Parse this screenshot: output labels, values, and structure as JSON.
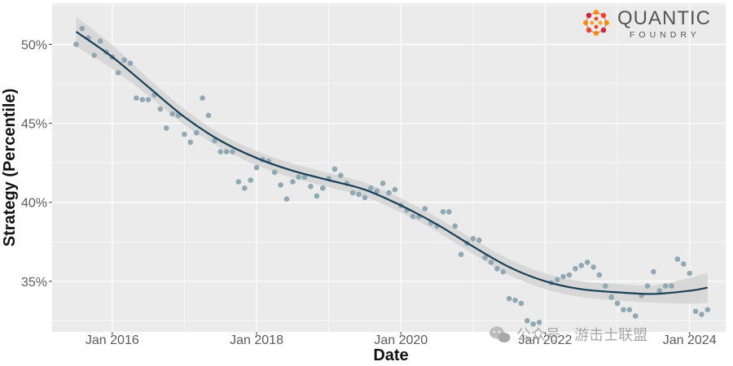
{
  "chart_data": {
    "type": "scatter",
    "title": "",
    "xlabel": "Date",
    "ylabel": "Strategy (Percentile)",
    "x_ticks": [
      "Jan 2016",
      "Jan 2018",
      "Jan 2020",
      "Jan 2022",
      "Jan 2024"
    ],
    "y_ticks": [
      "35%",
      "40%",
      "45%",
      "50%"
    ],
    "xlim": [
      "2015-03-01",
      "2024-07-01"
    ],
    "ylim": [
      31.8,
      52.6
    ],
    "grid": true,
    "colors": {
      "points": "#8fa8b4",
      "line": "#173f55",
      "band": "#d2d2d2",
      "panel": "#ebebeb",
      "grid": "#ffffff"
    },
    "points": [
      {
        "x": "2015-07",
        "y": 50.0
      },
      {
        "x": "2015-08",
        "y": 51.0
      },
      {
        "x": "2015-09",
        "y": 50.4
      },
      {
        "x": "2015-10",
        "y": 49.3
      },
      {
        "x": "2015-11",
        "y": 50.2
      },
      {
        "x": "2015-12",
        "y": 49.5
      },
      {
        "x": "2016-01",
        "y": 49.2
      },
      {
        "x": "2016-02",
        "y": 48.2
      },
      {
        "x": "2016-03",
        "y": 49.0
      },
      {
        "x": "2016-04",
        "y": 48.8
      },
      {
        "x": "2016-05",
        "y": 46.6
      },
      {
        "x": "2016-06",
        "y": 46.5
      },
      {
        "x": "2016-07",
        "y": 46.5
      },
      {
        "x": "2016-08",
        "y": 46.8
      },
      {
        "x": "2016-09",
        "y": 45.9
      },
      {
        "x": "2016-10",
        "y": 44.7
      },
      {
        "x": "2016-11",
        "y": 45.6
      },
      {
        "x": "2016-12",
        "y": 45.5
      },
      {
        "x": "2017-01",
        "y": 44.3
      },
      {
        "x": "2017-02",
        "y": 43.8
      },
      {
        "x": "2017-03",
        "y": 44.4
      },
      {
        "x": "2017-04",
        "y": 46.6
      },
      {
        "x": "2017-05",
        "y": 45.5
      },
      {
        "x": "2017-06",
        "y": 43.9
      },
      {
        "x": "2017-07",
        "y": 43.2
      },
      {
        "x": "2017-08",
        "y": 43.2
      },
      {
        "x": "2017-09",
        "y": 43.2
      },
      {
        "x": "2017-10",
        "y": 41.3
      },
      {
        "x": "2017-11",
        "y": 40.9
      },
      {
        "x": "2017-12",
        "y": 41.4
      },
      {
        "x": "2018-01",
        "y": 42.2
      },
      {
        "x": "2018-02",
        "y": 42.7
      },
      {
        "x": "2018-03",
        "y": 42.6
      },
      {
        "x": "2018-04",
        "y": 41.9
      },
      {
        "x": "2018-05",
        "y": 41.1
      },
      {
        "x": "2018-06",
        "y": 40.2
      },
      {
        "x": "2018-07",
        "y": 41.3
      },
      {
        "x": "2018-08",
        "y": 41.6
      },
      {
        "x": "2018-09",
        "y": 41.6
      },
      {
        "x": "2018-10",
        "y": 41.0
      },
      {
        "x": "2018-11",
        "y": 40.4
      },
      {
        "x": "2018-12",
        "y": 40.9
      },
      {
        "x": "2019-01",
        "y": 41.5
      },
      {
        "x": "2019-02",
        "y": 42.1
      },
      {
        "x": "2019-03",
        "y": 41.7
      },
      {
        "x": "2019-04",
        "y": 41.2
      },
      {
        "x": "2019-05",
        "y": 40.6
      },
      {
        "x": "2019-06",
        "y": 40.5
      },
      {
        "x": "2019-07",
        "y": 40.3
      },
      {
        "x": "2019-08",
        "y": 40.9
      },
      {
        "x": "2019-09",
        "y": 40.7
      },
      {
        "x": "2019-10",
        "y": 41.2
      },
      {
        "x": "2019-11",
        "y": 40.6
      },
      {
        "x": "2019-12",
        "y": 40.8
      },
      {
        "x": "2020-01",
        "y": 39.8
      },
      {
        "x": "2020-02",
        "y": 39.5
      },
      {
        "x": "2020-03",
        "y": 39.1
      },
      {
        "x": "2020-04",
        "y": 39.1
      },
      {
        "x": "2020-05",
        "y": 39.6
      },
      {
        "x": "2020-06",
        "y": 38.7
      },
      {
        "x": "2020-07",
        "y": 38.5
      },
      {
        "x": "2020-08",
        "y": 39.4
      },
      {
        "x": "2020-09",
        "y": 39.4
      },
      {
        "x": "2020-10",
        "y": 38.5
      },
      {
        "x": "2020-11",
        "y": 36.7
      },
      {
        "x": "2020-12",
        "y": 37.4
      },
      {
        "x": "2021-01",
        "y": 37.7
      },
      {
        "x": "2021-02",
        "y": 37.6
      },
      {
        "x": "2021-03",
        "y": 36.5
      },
      {
        "x": "2021-04",
        "y": 36.2
      },
      {
        "x": "2021-05",
        "y": 35.8
      },
      {
        "x": "2021-06",
        "y": 35.6
      },
      {
        "x": "2021-07",
        "y": 33.9
      },
      {
        "x": "2021-08",
        "y": 33.8
      },
      {
        "x": "2021-09",
        "y": 33.6
      },
      {
        "x": "2021-10",
        "y": 32.5
      },
      {
        "x": "2021-11",
        "y": 32.3
      },
      {
        "x": "2021-12",
        "y": 32.4
      },
      {
        "x": "2022-02",
        "y": 34.9
      },
      {
        "x": "2022-03",
        "y": 35.1
      },
      {
        "x": "2022-04",
        "y": 35.3
      },
      {
        "x": "2022-05",
        "y": 35.4
      },
      {
        "x": "2022-06",
        "y": 35.8
      },
      {
        "x": "2022-07",
        "y": 36.0
      },
      {
        "x": "2022-08",
        "y": 36.2
      },
      {
        "x": "2022-09",
        "y": 35.9
      },
      {
        "x": "2022-10",
        "y": 35.4
      },
      {
        "x": "2022-11",
        "y": 34.7
      },
      {
        "x": "2022-12",
        "y": 34.0
      },
      {
        "x": "2023-01",
        "y": 33.6
      },
      {
        "x": "2023-02",
        "y": 33.2
      },
      {
        "x": "2023-03",
        "y": 33.2
      },
      {
        "x": "2023-04",
        "y": 32.8
      },
      {
        "x": "2023-05",
        "y": 34.1
      },
      {
        "x": "2023-06",
        "y": 34.7
      },
      {
        "x": "2023-07",
        "y": 35.6
      },
      {
        "x": "2023-08",
        "y": 34.4
      },
      {
        "x": "2023-09",
        "y": 34.7
      },
      {
        "x": "2023-10",
        "y": 34.7
      },
      {
        "x": "2023-11",
        "y": 36.4
      },
      {
        "x": "2023-12",
        "y": 36.1
      },
      {
        "x": "2024-01",
        "y": 35.5
      },
      {
        "x": "2024-02",
        "y": 33.1
      },
      {
        "x": "2024-03",
        "y": 32.9
      },
      {
        "x": "2024-04",
        "y": 33.2
      }
    ],
    "trend": [
      {
        "x": "2015-07",
        "y": 50.8
      },
      {
        "x": "2016-01",
        "y": 49.2
      },
      {
        "x": "2016-07",
        "y": 47.3
      },
      {
        "x": "2017-01",
        "y": 45.4
      },
      {
        "x": "2017-07",
        "y": 43.9
      },
      {
        "x": "2018-01",
        "y": 42.8
      },
      {
        "x": "2018-07",
        "y": 42.0
      },
      {
        "x": "2019-01",
        "y": 41.4
      },
      {
        "x": "2019-07",
        "y": 40.8
      },
      {
        "x": "2020-01",
        "y": 39.8
      },
      {
        "x": "2020-07",
        "y": 38.6
      },
      {
        "x": "2021-01",
        "y": 37.2
      },
      {
        "x": "2021-07",
        "y": 35.9
      },
      {
        "x": "2022-01",
        "y": 35.0
      },
      {
        "x": "2022-07",
        "y": 34.5
      },
      {
        "x": "2023-01",
        "y": 34.3
      },
      {
        "x": "2023-07",
        "y": 34.2
      },
      {
        "x": "2024-01",
        "y": 34.4
      },
      {
        "x": "2024-04",
        "y": 34.6
      }
    ],
    "band_halfwidth": [
      {
        "x": "2015-07",
        "y": 0.95
      },
      {
        "x": "2016-07",
        "y": 0.55
      },
      {
        "x": "2017-07",
        "y": 0.45
      },
      {
        "x": "2018-07",
        "y": 0.45
      },
      {
        "x": "2019-07",
        "y": 0.45
      },
      {
        "x": "2020-07",
        "y": 0.45
      },
      {
        "x": "2021-07",
        "y": 0.5
      },
      {
        "x": "2022-07",
        "y": 0.5
      },
      {
        "x": "2023-07",
        "y": 0.55
      },
      {
        "x": "2024-04",
        "y": 0.95
      }
    ]
  },
  "logo": {
    "name": "QUANTIC",
    "sub": "FOUNDRY",
    "colors": [
      "#f7a21b",
      "#e8452b",
      "#c8203a"
    ]
  },
  "watermark": {
    "text": "公众号 · 游击士联盟",
    "icon": "wechat-icon"
  }
}
